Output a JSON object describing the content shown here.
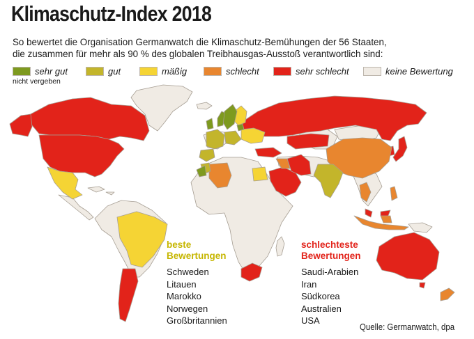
{
  "title": "Klimaschutz-Index 2018",
  "subtitle_line1": "So bewertet die Organisation Germanwatch die Klimaschutz-Bemühungen der 56 Staaten,",
  "subtitle_line2": "die zusammen für mehr als 90 % des globalen Treibhausgas-Ausstoß verantwortlich sind:",
  "legend": {
    "items": [
      {
        "label": "sehr gut",
        "color": "#7e9a1f"
      },
      {
        "label": "gut",
        "color": "#c3b52b"
      },
      {
        "label": "mäßig",
        "color": "#f5d434"
      },
      {
        "label": "schlecht",
        "color": "#e8862f"
      },
      {
        "label": "sehr schlecht",
        "color": "#e2231a"
      },
      {
        "label": "keine Bewertung",
        "color": "#f0ebe4"
      }
    ],
    "note": "nicht vergeben"
  },
  "best": {
    "heading_line1": "beste",
    "heading_line2": "Bewertungen",
    "countries": [
      "Schweden",
      "Litauen",
      "Marokko",
      "Norwegen",
      "Großbritannien"
    ]
  },
  "worst": {
    "heading_line1": "schlechteste",
    "heading_line2": "Bewertungen",
    "countries": [
      "Saudi-Arabien",
      "Iran",
      "Südkorea",
      "Australien",
      "USA"
    ]
  },
  "source": "Quelle: Germanwatch, dpa",
  "map": {
    "land_color": "#f0ebe4",
    "border_color": "#a69e93"
  }
}
